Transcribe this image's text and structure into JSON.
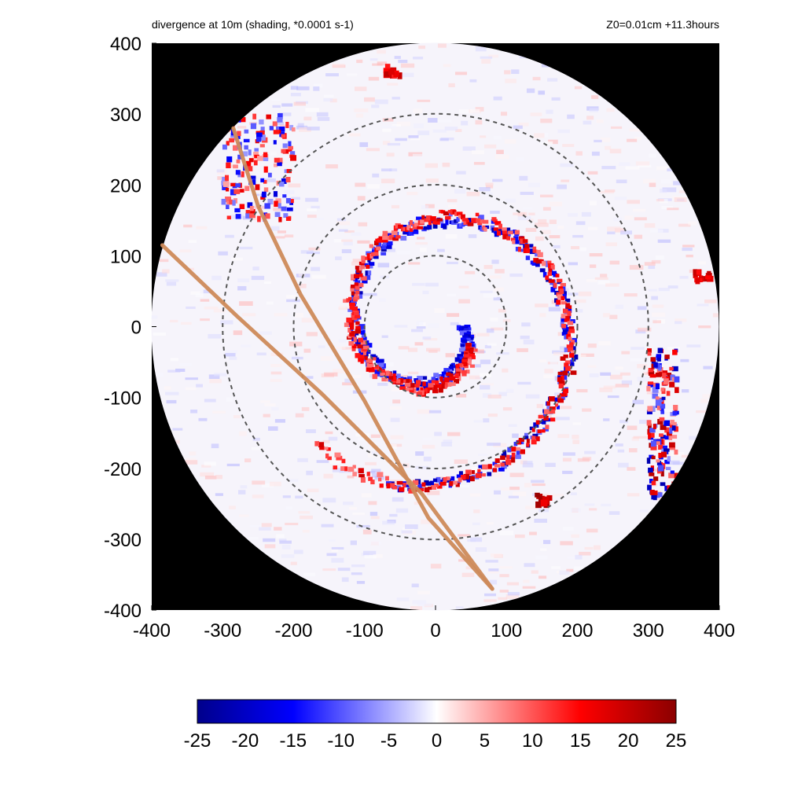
{
  "chart_data": {
    "type": "heatmap",
    "title": "divergence at 10m (shading, *0.0001 s-1)",
    "subtitle": "Z0=0.01cm  +11.3hours",
    "xlim": [
      -400,
      400
    ],
    "ylim": [
      -400,
      400
    ],
    "x_ticks": [
      -400,
      -300,
      -200,
      -100,
      0,
      100,
      200,
      300,
      400
    ],
    "y_ticks": [
      -400,
      -300,
      -200,
      -100,
      0,
      100,
      200,
      300,
      400
    ],
    "domain_radius": 400,
    "range_rings": [
      100,
      200,
      300
    ],
    "grid": false,
    "colormap": {
      "name": "blue-white-red diverging",
      "range": [
        -25,
        25
      ],
      "ticks": [
        -25,
        -20,
        -15,
        -10,
        -5,
        0,
        5,
        10,
        15,
        20,
        25
      ],
      "stops": [
        "#00008b",
        "#0000ff",
        "#ffffff",
        "#ff0000",
        "#8b0000"
      ]
    },
    "outside_domain_color": "#000000",
    "track_color": "#cd8a5a",
    "tracks": [
      {
        "points": [
          [
            -385,
            115
          ],
          [
            -280,
            15
          ],
          [
            -160,
            -95
          ],
          [
            -20,
            -235
          ],
          [
            80,
            -370
          ]
        ]
      },
      {
        "points": [
          [
            -285,
            280
          ],
          [
            -250,
            170
          ],
          [
            -190,
            45
          ],
          [
            -100,
            -105
          ],
          [
            -10,
            -270
          ],
          [
            80,
            -370
          ]
        ]
      }
    ],
    "features": [
      {
        "kind": "spiral_band_convergence",
        "center": [
          0,
          0
        ],
        "r_start": 40,
        "r_end": 230,
        "turns": 1.3,
        "value": -20
      },
      {
        "kind": "spiral_band_divergence",
        "center": [
          0,
          0
        ],
        "r_start": 60,
        "r_end": 240,
        "turns": 1.3,
        "value": 18
      },
      {
        "kind": "outer_rainband",
        "region": "east",
        "x_range": [
          300,
          340
        ],
        "y_range": [
          -240,
          -30
        ],
        "value": 22
      },
      {
        "kind": "outer_rainband",
        "region": "northwest",
        "x_range": [
          -300,
          -200
        ],
        "y_range": [
          150,
          300
        ],
        "value": -18
      },
      {
        "kind": "hotspot",
        "point": [
          150,
          -245
        ],
        "value": 25
      },
      {
        "kind": "hotspot",
        "point": [
          -60,
          360
        ],
        "value": 22
      },
      {
        "kind": "hotspot",
        "point": [
          375,
          70
        ],
        "value": 22
      }
    ]
  }
}
